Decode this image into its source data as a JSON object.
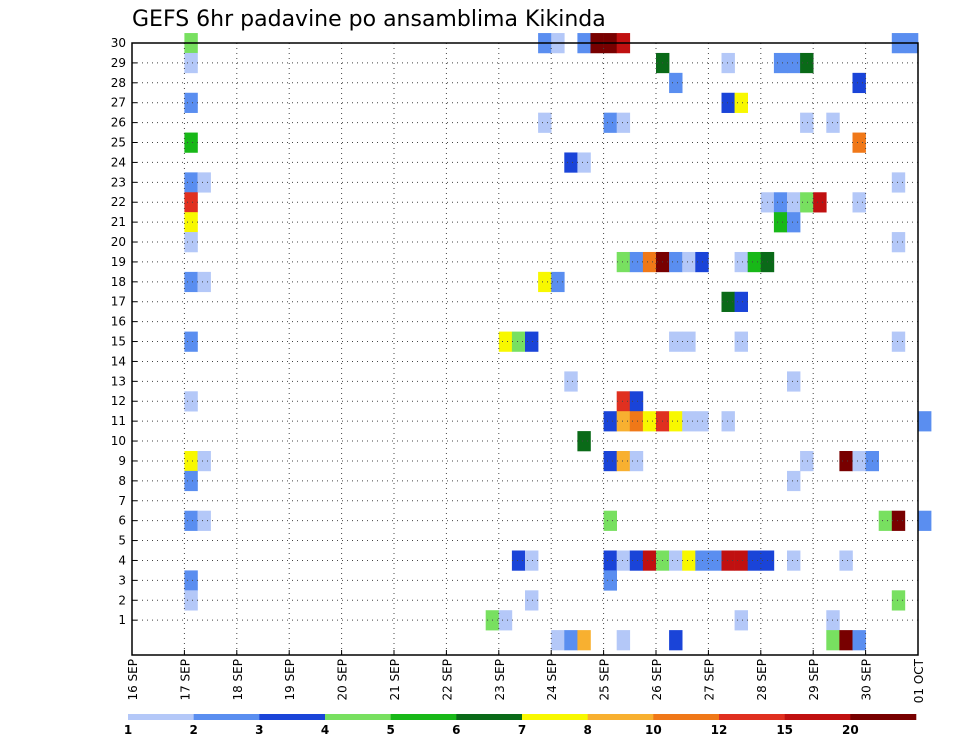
{
  "chart_data": {
    "type": "heatmap",
    "title": "GEFS 6hr padavine po ansamblima Kikinda",
    "xlabel": "",
    "ylabel": "",
    "x_tick_labels": [
      "16 SEP",
      "17 SEP",
      "18 SEP",
      "19 SEP",
      "20 SEP",
      "21 SEP",
      "22 SEP",
      "23 SEP",
      "24 SEP",
      "25 SEP",
      "26 SEP",
      "27 SEP",
      "28 SEP",
      "29 SEP",
      "30 SEP",
      "01 OCT"
    ],
    "x_range_steps": [
      0,
      60
    ],
    "y_tick_labels": [
      "1",
      "2",
      "3",
      "4",
      "5",
      "6",
      "7",
      "8",
      "9",
      "10",
      "11",
      "12",
      "13",
      "14",
      "15",
      "16",
      "17",
      "18",
      "19",
      "20",
      "21",
      "22",
      "23",
      "24",
      "25",
      "26",
      "27",
      "28",
      "29",
      "30"
    ],
    "y_range": [
      0,
      30
    ],
    "grid": true,
    "colorbar": {
      "labels": [
        "1",
        "2",
        "3",
        "4",
        "5",
        "6",
        "7",
        "8",
        "10",
        "12",
        "15",
        "20"
      ],
      "colors": [
        "#b4c8f8",
        "#5a8ef0",
        "#1a44d8",
        "#78e060",
        "#18b818",
        "#0a6a18",
        "#f8f800",
        "#f8b030",
        "#f07818",
        "#e03020",
        "#c01010",
        "#780000"
      ]
    },
    "cells": [
      {
        "m": 30,
        "c": [
          [
            4,
            3
          ]
        ]
      },
      {
        "m": 30,
        "c": [
          [
            31,
            1
          ],
          [
            32,
            0
          ],
          [
            34,
            1
          ],
          [
            35,
            11
          ],
          [
            36,
            11
          ],
          [
            37,
            10
          ],
          [
            58,
            1
          ],
          [
            59,
            1
          ]
        ]
      },
      {
        "m": 29,
        "c": [
          [
            4,
            0
          ],
          [
            40,
            5
          ],
          [
            45,
            0
          ],
          [
            49,
            1
          ],
          [
            50,
            1
          ],
          [
            51,
            5
          ]
        ]
      },
      {
        "m": 28,
        "c": [
          [
            41,
            1
          ],
          [
            55,
            2
          ]
        ]
      },
      {
        "m": 27,
        "c": [
          [
            4,
            1
          ],
          [
            45,
            2
          ],
          [
            46,
            6
          ]
        ]
      },
      {
        "m": 26,
        "c": [
          [
            31,
            0
          ],
          [
            36,
            1
          ],
          [
            37,
            0
          ],
          [
            51,
            0
          ],
          [
            53,
            0
          ]
        ]
      },
      {
        "m": 25,
        "c": [
          [
            4,
            4
          ],
          [
            55,
            8
          ]
        ]
      },
      {
        "m": 24,
        "c": [
          [
            33,
            2
          ],
          [
            34,
            0
          ]
        ]
      },
      {
        "m": 23,
        "c": [
          [
            4,
            1
          ],
          [
            5,
            0
          ],
          [
            58,
            0
          ]
        ]
      },
      {
        "m": 22,
        "c": [
          [
            4,
            9
          ],
          [
            48,
            0
          ],
          [
            49,
            1
          ],
          [
            50,
            0
          ],
          [
            51,
            3
          ],
          [
            52,
            10
          ],
          [
            55,
            0
          ]
        ]
      },
      {
        "m": 21,
        "c": [
          [
            4,
            6
          ],
          [
            49,
            4
          ],
          [
            50,
            1
          ]
        ]
      },
      {
        "m": 20,
        "c": [
          [
            4,
            0
          ],
          [
            58,
            0
          ]
        ]
      },
      {
        "m": 19,
        "c": [
          [
            37,
            3
          ],
          [
            38,
            1
          ],
          [
            39,
            8
          ],
          [
            40,
            11
          ],
          [
            41,
            1
          ],
          [
            42,
            0
          ],
          [
            43,
            2
          ],
          [
            46,
            0
          ],
          [
            47,
            4
          ],
          [
            48,
            5
          ]
        ]
      },
      {
        "m": 18,
        "c": [
          [
            4,
            1
          ],
          [
            5,
            0
          ],
          [
            31,
            6
          ],
          [
            32,
            1
          ]
        ]
      },
      {
        "m": 17,
        "c": [
          [
            45,
            5
          ],
          [
            46,
            2
          ]
        ]
      },
      {
        "m": 16,
        "c": []
      },
      {
        "m": 15,
        "c": [
          [
            4,
            1
          ],
          [
            28,
            6
          ],
          [
            29,
            3
          ],
          [
            30,
            2
          ],
          [
            41,
            0
          ],
          [
            42,
            0
          ],
          [
            46,
            0
          ],
          [
            58,
            0
          ]
        ]
      },
      {
        "m": 14,
        "c": []
      },
      {
        "m": 13,
        "c": [
          [
            33,
            0
          ],
          [
            50,
            0
          ]
        ]
      },
      {
        "m": 12,
        "c": [
          [
            4,
            0
          ],
          [
            37,
            9
          ],
          [
            38,
            2
          ]
        ]
      },
      {
        "m": 11,
        "c": [
          [
            36,
            2
          ],
          [
            37,
            7
          ],
          [
            38,
            8
          ],
          [
            39,
            6
          ],
          [
            40,
            9
          ],
          [
            41,
            6
          ],
          [
            42,
            0
          ],
          [
            43,
            0
          ],
          [
            45,
            0
          ],
          [
            60,
            1
          ]
        ]
      },
      {
        "m": 10,
        "c": [
          [
            34,
            5
          ]
        ]
      },
      {
        "m": 9,
        "c": [
          [
            4,
            6
          ],
          [
            5,
            0
          ],
          [
            36,
            2
          ],
          [
            37,
            7
          ],
          [
            38,
            0
          ],
          [
            51,
            0
          ],
          [
            54,
            11
          ],
          [
            55,
            0
          ],
          [
            56,
            1
          ]
        ]
      },
      {
        "m": 8,
        "c": [
          [
            4,
            1
          ],
          [
            50,
            0
          ]
        ]
      },
      {
        "m": 7,
        "c": []
      },
      {
        "m": 6,
        "c": [
          [
            4,
            1
          ],
          [
            5,
            0
          ],
          [
            36,
            3
          ],
          [
            57,
            3
          ],
          [
            58,
            11
          ],
          [
            60,
            1
          ]
        ]
      },
      {
        "m": 5,
        "c": []
      },
      {
        "m": 4,
        "c": [
          [
            29,
            2
          ],
          [
            30,
            0
          ],
          [
            36,
            2
          ],
          [
            37,
            0
          ],
          [
            38,
            2
          ],
          [
            39,
            10
          ],
          [
            40,
            3
          ],
          [
            41,
            0
          ],
          [
            42,
            6
          ],
          [
            43,
            1
          ],
          [
            44,
            1
          ],
          [
            45,
            10
          ],
          [
            46,
            10
          ],
          [
            47,
            2
          ],
          [
            48,
            2
          ],
          [
            50,
            0
          ],
          [
            54,
            0
          ]
        ]
      },
      {
        "m": 3,
        "c": [
          [
            4,
            1
          ],
          [
            36,
            1
          ]
        ]
      },
      {
        "m": 2,
        "c": [
          [
            4,
            0
          ],
          [
            30,
            0
          ],
          [
            58,
            3
          ]
        ]
      },
      {
        "m": 1,
        "c": [
          [
            27,
            3
          ],
          [
            28,
            0
          ],
          [
            46,
            0
          ],
          [
            53,
            0
          ]
        ]
      },
      {
        "m": 0,
        "c": [
          [
            32,
            0
          ],
          [
            33,
            1
          ],
          [
            34,
            7
          ],
          [
            37,
            0
          ],
          [
            41,
            2
          ],
          [
            53,
            3
          ],
          [
            54,
            11
          ],
          [
            55,
            1
          ]
        ]
      }
    ]
  }
}
